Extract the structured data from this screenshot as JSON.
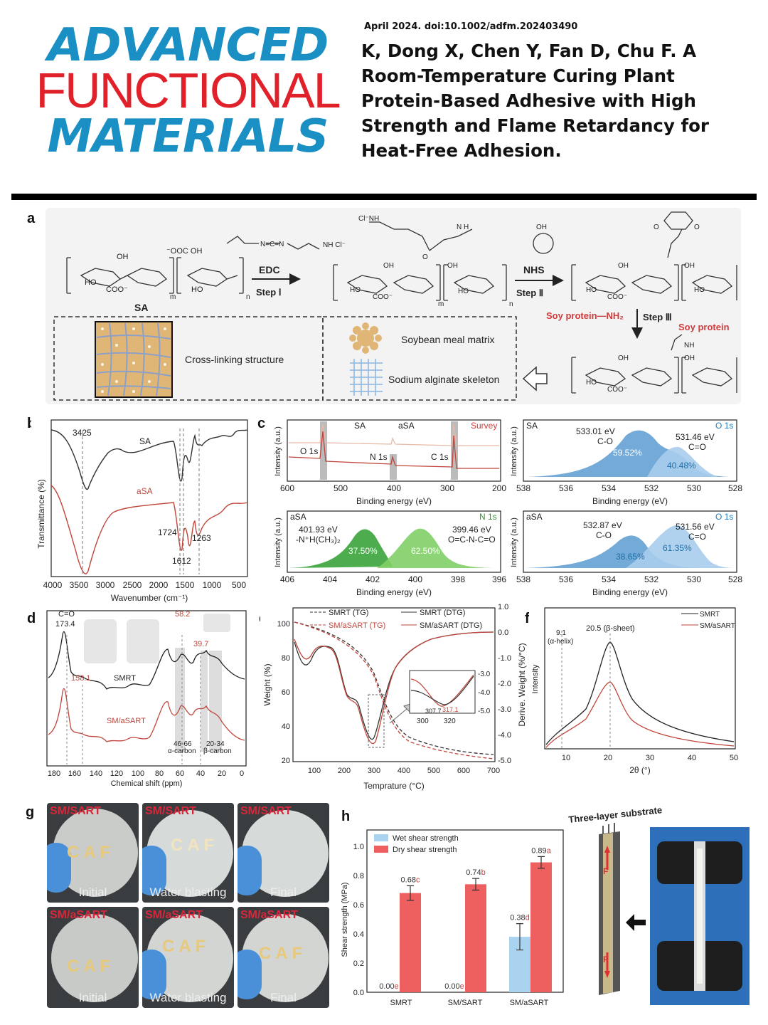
{
  "journal": {
    "line1": "ADVANCED",
    "line2": "FUNCTIONAL",
    "line3": "MATERIALS"
  },
  "citation": {
    "line": "April 2024. doi:10.1002/adfm.202403490",
    "title": " K, Dong X, Chen Y, Fan D, Chu F. A Room‐Temperature Curing Plant Protein‐Based Adhesive with High Strength and Flame Retardancy for Heat‐Free Adhesion."
  },
  "panel_labels": {
    "a": "a",
    "b": "b",
    "c": "c",
    "d": "d",
    "e": "e",
    "f": "f",
    "g": "g",
    "h": "h"
  },
  "scheme": {
    "sa": "SA",
    "edc": "EDC",
    "step1": "Step Ⅰ",
    "nhs": "NHS",
    "step2": "Step Ⅱ",
    "step3": "Step Ⅲ",
    "soy_nh2": "Soy protein—NH₂",
    "soy_protein": "Soy protein",
    "crosslink": "Cross-linking structure",
    "soybean": "Soybean meal matrix",
    "alginate": "Sodium alginate skeleton",
    "m": "m",
    "n": "n"
  },
  "chart_data": [
    {
      "id": "b",
      "type": "line",
      "xlabel": "Wavenumber (cm⁻¹)",
      "ylabel": "Transmittance (%)",
      "xlim": [
        4000,
        400
      ],
      "xticks": [
        "4000",
        "3500",
        "3000",
        "2500",
        "2000",
        "1500",
        "1000",
        "500"
      ],
      "series": [
        {
          "name": "SA",
          "color": "#333333"
        },
        {
          "name": "aSA",
          "color": "#c0453a"
        }
      ],
      "annotations": [
        "3425",
        "1724",
        "1612",
        "1263"
      ]
    },
    {
      "id": "c1",
      "type": "line",
      "title": "Survey",
      "xlabel": "Binding energy (eV)",
      "ylabel": "Intensity (a.u.)",
      "xticks": [
        "600",
        "500",
        "400",
        "300",
        "200"
      ],
      "legend": [
        "SA",
        "aSA"
      ],
      "peaks": [
        "O 1s",
        "N 1s",
        "C 1s"
      ]
    },
    {
      "id": "c2",
      "type": "area",
      "title": "O 1s",
      "sample": "SA",
      "xlabel": "Binding energy (eV)",
      "ylabel": "Intensity (a.u.)",
      "xticks": [
        "538",
        "536",
        "534",
        "532",
        "530",
        "528"
      ],
      "peaks": [
        {
          "energy": "533.01 eV",
          "bond": "C-O",
          "percent": "59.52%"
        },
        {
          "energy": "531.46 eV",
          "bond": "C=O",
          "percent": "40.48%"
        }
      ]
    },
    {
      "id": "c3",
      "type": "area",
      "title": "N 1s",
      "sample": "aSA",
      "xlabel": "Binding energy (eV)",
      "ylabel": "Intensity (a.u.)",
      "xticks": [
        "406",
        "404",
        "402",
        "400",
        "398",
        "396"
      ],
      "peaks": [
        {
          "energy": "401.93 eV",
          "bond": "-N⁺H(CH₃)₂",
          "percent": "37.50%"
        },
        {
          "energy": "399.46 eV",
          "bond": "O=C-N-C=O",
          "percent": "62.50%"
        }
      ]
    },
    {
      "id": "c4",
      "type": "area",
      "title": "O 1s",
      "sample": "aSA",
      "xlabel": "Binding energy (eV)",
      "ylabel": "Intensity (a.u.)",
      "xticks": [
        "538",
        "536",
        "534",
        "532",
        "530",
        "528"
      ],
      "peaks": [
        {
          "energy": "532.87 eV",
          "bond": "C-O",
          "percent": "38.65%"
        },
        {
          "energy": "531.56 eV",
          "bond": "C=O",
          "percent": "61.35%"
        }
      ]
    },
    {
      "id": "d",
      "type": "line",
      "xlabel": "Chemical shift (ppm)",
      "xticks": [
        "180",
        "160",
        "140",
        "120",
        "100",
        "80",
        "60",
        "40",
        "20",
        "0"
      ],
      "series": [
        {
          "name": "SMRT",
          "color": "#222222"
        },
        {
          "name": "SM/aSART",
          "color": "#c0453a"
        }
      ],
      "annotations": [
        "C=O",
        "173.4",
        "158.1",
        "58.2",
        "39.7",
        "46-66",
        "α-carbon",
        "20-34",
        "β-carbon"
      ]
    },
    {
      "id": "e",
      "type": "line",
      "xlabel": "Temprature (°C)",
      "ylabel": "Weight (%)",
      "ylabel2": "Derive. Weight (%/°C)",
      "xticks": [
        "100",
        "200",
        "300",
        "400",
        "500",
        "600",
        "700"
      ],
      "yticks": [
        "20",
        "40",
        "60",
        "80",
        "100"
      ],
      "y2ticks": [
        "1.0",
        "0.0",
        "-1.0",
        "-2.0",
        "-3.0",
        "-4.0",
        "-5.0"
      ],
      "legend": [
        "SMRT (TG)",
        "SM/aSART (TG)",
        "SMRT (DTG)",
        "SM/aSART (DTG)"
      ],
      "inset": {
        "xticks": [
          "300",
          "320"
        ],
        "yticks": [
          "-3.0",
          "-4.0",
          "-5.0"
        ],
        "labels": [
          "307.7",
          "317.1"
        ]
      }
    },
    {
      "id": "f",
      "type": "line",
      "xlabel": "2θ (°)",
      "ylabel": "Intensity",
      "xticks": [
        "10",
        "20",
        "30",
        "40",
        "50"
      ],
      "legend": [
        "SMRT",
        "SM/aSART"
      ],
      "annotations": [
        "9.1",
        "(α-helix)",
        "20.5 (β-sheet)"
      ]
    },
    {
      "id": "h",
      "type": "bar",
      "ylabel": "Shear strength (MPa)",
      "ylim": [
        0,
        1.0
      ],
      "yticks": [
        "0.0",
        "0.2",
        "0.4",
        "0.6",
        "0.8",
        "1.0"
      ],
      "categories": [
        "SMRT",
        "SM/SART",
        "SM/aSART"
      ],
      "series": [
        {
          "name": "Wet shear strength",
          "color": "#a9d3ee",
          "values": [
            0.0,
            0.0,
            0.38
          ],
          "errors": [
            0,
            0,
            0.09
          ],
          "labels": [
            "0.00",
            "0.00",
            "0.38"
          ],
          "letters": [
            "e",
            "e",
            "d"
          ]
        },
        {
          "name": "Dry shear strength",
          "color": "#ee5f5f",
          "values": [
            0.68,
            0.74,
            0.89
          ],
          "errors": [
            0.05,
            0.04,
            0.04
          ],
          "labels": [
            "0.68",
            "0.74",
            "0.89"
          ],
          "letters": [
            "c",
            "b",
            "a"
          ]
        }
      ]
    }
  ],
  "photos": {
    "rows": [
      {
        "sample": "SM/SART"
      },
      {
        "sample": "SM/aSART"
      }
    ],
    "stages": [
      "Initial",
      "Water blasting",
      "Final"
    ],
    "caf": "CAF"
  },
  "substrate": {
    "title": "Three-layer substrate",
    "force": "F"
  }
}
